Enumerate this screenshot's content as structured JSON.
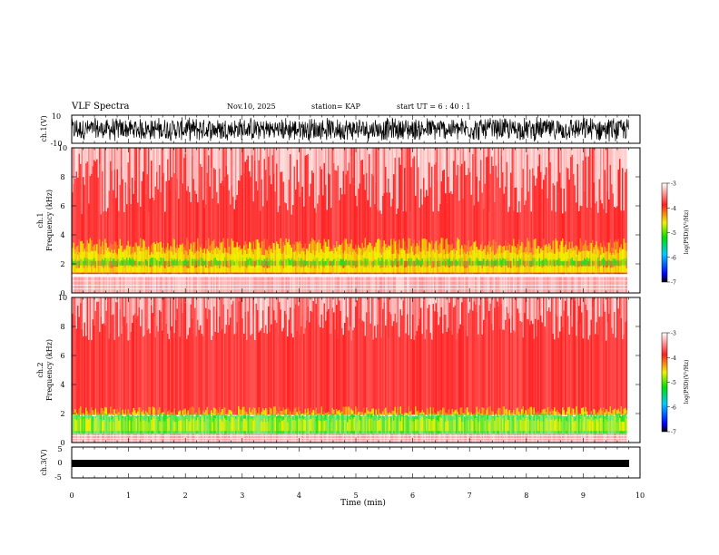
{
  "header": {
    "title": "VLF Spectra",
    "date": "Nov.10, 2025",
    "station": "station= KAP",
    "start": "start  UT  =   6  : 40 : 1"
  },
  "chart_data": [
    {
      "type": "line",
      "name": "ch1-waveform",
      "ylabel": "ch.1(V)",
      "ylim": [
        -10,
        10
      ],
      "yticks": [
        "10",
        "-10"
      ],
      "xlim": [
        0,
        10
      ],
      "data_end_min": 9.8
    },
    {
      "type": "heatmap",
      "name": "ch1-spectrogram",
      "ylabel_top": "ch.1",
      "ylabel": "Frequency  (kHz)",
      "ylim": [
        0,
        10
      ],
      "yticks": [
        "0",
        "2",
        "4",
        "6",
        "8",
        "10"
      ],
      "xlim": [
        0,
        10
      ],
      "data_end_min": 9.8,
      "colorbar": {
        "label": "log(PSD)(V²/Hz)",
        "range": [
          -7,
          -3
        ],
        "ticks": [
          "-3",
          "-4",
          "-5",
          "-6",
          "-7"
        ]
      }
    },
    {
      "type": "heatmap",
      "name": "ch2-spectrogram",
      "ylabel_top": "ch.2",
      "ylabel": "Frequency  (kHz)",
      "ylim": [
        0,
        10
      ],
      "yticks": [
        "0",
        "2",
        "4",
        "6",
        "8",
        "10"
      ],
      "xlim": [
        0,
        10
      ],
      "data_end_min": 9.8,
      "colorbar": {
        "label": "log(PSD)(V²/Hz)",
        "range": [
          -7,
          -3
        ],
        "ticks": [
          "-3",
          "-4",
          "-5",
          "-6",
          "-7"
        ]
      }
    },
    {
      "type": "line",
      "name": "ch3-waveform",
      "ylabel": "ch.3(V)",
      "ylim": [
        -5,
        5
      ],
      "yticks": [
        "5",
        "0",
        "-5"
      ],
      "xlim": [
        0,
        10
      ],
      "data_end_min": 9.8
    }
  ],
  "xaxis": {
    "label": "Time  (min)",
    "ticks": [
      "0",
      "1",
      "2",
      "3",
      "4",
      "5",
      "6",
      "7",
      "8",
      "9",
      "10"
    ]
  },
  "colors": {
    "spec_bg": "#ffffff",
    "spec_red": "#ff2020",
    "spec_yellow": "#f0f000",
    "spec_green": "#20e020"
  }
}
